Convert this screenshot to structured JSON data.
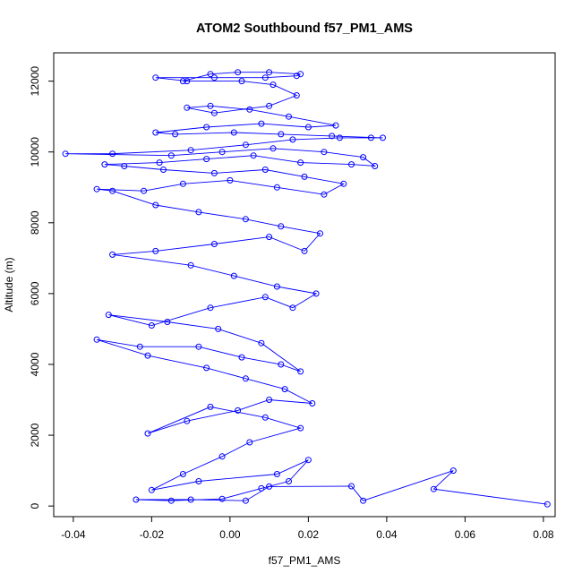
{
  "colors": {
    "series": "#0000ff",
    "axis": "#000000",
    "background": "#ffffff"
  },
  "chart_data": {
    "type": "scatter",
    "title": "ATOM2 Southbound f57_PM1_AMS",
    "xlabel": "f57_PM1_AMS",
    "ylabel": "Altitude (m)",
    "xlim": [
      -0.045,
      0.083
    ],
    "ylim": [
      -300,
      12800
    ],
    "xticks": [
      -0.04,
      -0.02,
      0.0,
      0.02,
      0.04,
      0.06,
      0.08
    ],
    "xtick_labels": [
      "-0.04",
      "-0.02",
      "0.00",
      "0.02",
      "0.04",
      "0.06",
      "0.08"
    ],
    "yticks": [
      0,
      2000,
      4000,
      6000,
      8000,
      10000,
      12000
    ],
    "ytick_labels": [
      "0",
      "2000",
      "4000",
      "6000",
      "8000",
      "10000",
      "12000"
    ],
    "grid": false,
    "marker": "open-circle",
    "connected_lines": true,
    "series": [
      {
        "points": [
          [
            0.081,
            50
          ],
          [
            0.052,
            480
          ],
          [
            0.057,
            1000
          ],
          [
            0.034,
            150
          ],
          [
            0.031,
            560
          ],
          [
            0.01,
            550
          ],
          [
            0.004,
            150
          ],
          [
            -0.01,
            180
          ],
          [
            -0.024,
            180
          ],
          [
            -0.015,
            150
          ],
          [
            -0.002,
            200
          ],
          [
            0.008,
            500
          ],
          [
            0.015,
            700
          ],
          [
            0.02,
            1300
          ],
          [
            0.012,
            900
          ],
          [
            -0.008,
            700
          ],
          [
            -0.02,
            450
          ],
          [
            -0.012,
            900
          ],
          [
            -0.002,
            1400
          ],
          [
            0.005,
            1800
          ],
          [
            0.018,
            2200
          ],
          [
            0.009,
            2500
          ],
          [
            -0.005,
            2800
          ],
          [
            -0.021,
            2050
          ],
          [
            -0.011,
            2400
          ],
          [
            0.002,
            2700
          ],
          [
            0.01,
            3000
          ],
          [
            0.021,
            2900
          ],
          [
            0.014,
            3300
          ],
          [
            0.004,
            3600
          ],
          [
            -0.006,
            3900
          ],
          [
            -0.021,
            4250
          ],
          [
            -0.034,
            4700
          ],
          [
            -0.023,
            4500
          ],
          [
            -0.008,
            4500
          ],
          [
            0.003,
            4200
          ],
          [
            0.013,
            4000
          ],
          [
            0.018,
            3800
          ],
          [
            0.008,
            4600
          ],
          [
            -0.003,
            5000
          ],
          [
            -0.016,
            5200
          ],
          [
            -0.031,
            5400
          ],
          [
            -0.02,
            5100
          ],
          [
            -0.005,
            5600
          ],
          [
            0.009,
            5900
          ],
          [
            0.016,
            5600
          ],
          [
            0.022,
            6000
          ],
          [
            0.012,
            6200
          ],
          [
            0.001,
            6500
          ],
          [
            -0.01,
            6800
          ],
          [
            -0.03,
            7100
          ],
          [
            -0.019,
            7200
          ],
          [
            -0.004,
            7400
          ],
          [
            0.01,
            7600
          ],
          [
            0.019,
            7200
          ],
          [
            0.023,
            7700
          ],
          [
            0.013,
            7900
          ],
          [
            0.004,
            8100
          ],
          [
            -0.008,
            8300
          ],
          [
            -0.019,
            8500
          ],
          [
            -0.03,
            8900
          ],
          [
            -0.034,
            8950
          ],
          [
            -0.022,
            8900
          ],
          [
            -0.012,
            9100
          ],
          [
            0.0,
            9200
          ],
          [
            0.012,
            9000
          ],
          [
            0.024,
            8800
          ],
          [
            0.029,
            9100
          ],
          [
            0.019,
            9300
          ],
          [
            0.009,
            9500
          ],
          [
            -0.004,
            9400
          ],
          [
            -0.017,
            9500
          ],
          [
            -0.027,
            9600
          ],
          [
            -0.032,
            9650
          ],
          [
            -0.018,
            9700
          ],
          [
            -0.006,
            9800
          ],
          [
            0.006,
            9900
          ],
          [
            0.018,
            9700
          ],
          [
            0.031,
            9650
          ],
          [
            0.037,
            9600
          ],
          [
            0.034,
            9850
          ],
          [
            0.024,
            10000
          ],
          [
            0.011,
            10100
          ],
          [
            -0.002,
            10000
          ],
          [
            -0.015,
            9900
          ],
          [
            -0.042,
            9950
          ],
          [
            -0.03,
            9950
          ],
          [
            -0.01,
            10050
          ],
          [
            0.004,
            10200
          ],
          [
            0.016,
            10350
          ],
          [
            0.028,
            10400
          ],
          [
            0.036,
            10400
          ],
          [
            0.039,
            10400
          ],
          [
            0.026,
            10450
          ],
          [
            0.013,
            10500
          ],
          [
            0.001,
            10550
          ],
          [
            -0.014,
            10500
          ],
          [
            -0.019,
            10550
          ],
          [
            -0.006,
            10700
          ],
          [
            0.008,
            10800
          ],
          [
            0.02,
            10700
          ],
          [
            0.027,
            10750
          ],
          [
            0.015,
            11000
          ],
          [
            0.005,
            11200
          ],
          [
            -0.005,
            11300
          ],
          [
            -0.011,
            11250
          ],
          [
            -0.004,
            11100
          ],
          [
            0.01,
            11300
          ],
          [
            0.017,
            11600
          ],
          [
            0.011,
            11900
          ],
          [
            0.003,
            12000
          ],
          [
            -0.011,
            12000
          ],
          [
            -0.019,
            12100
          ],
          [
            -0.004,
            12100
          ],
          [
            0.009,
            12100
          ],
          [
            0.017,
            12150
          ],
          [
            0.018,
            12200
          ],
          [
            0.01,
            12250
          ],
          [
            0.002,
            12250
          ],
          [
            -0.005,
            12200
          ],
          [
            -0.012,
            12000
          ]
        ]
      }
    ]
  }
}
